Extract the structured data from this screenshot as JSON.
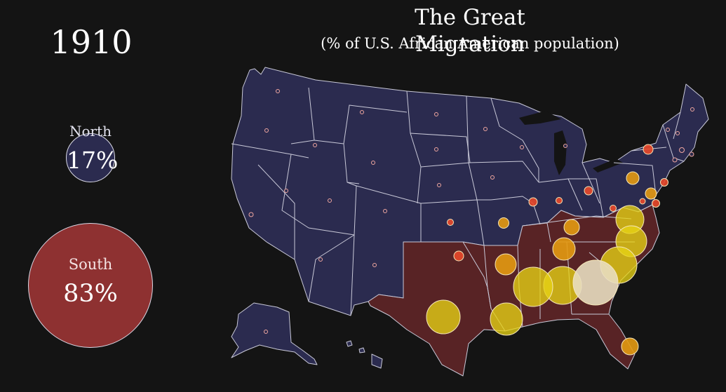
{
  "title": "The Great Migration",
  "subtitle": "(% of U.S. African American population)",
  "year": "1910",
  "regions": {
    "north": {
      "label": "North",
      "percent": "17%",
      "color": "#2b2b4f"
    },
    "south": {
      "label": "South",
      "percent": "83%",
      "color": "#8e3131"
    }
  },
  "legend_colors": {
    "low": "#e9482a",
    "mid": "#e49a12",
    "high": "#e7d214",
    "highest": "#e8ddc0"
  }
}
